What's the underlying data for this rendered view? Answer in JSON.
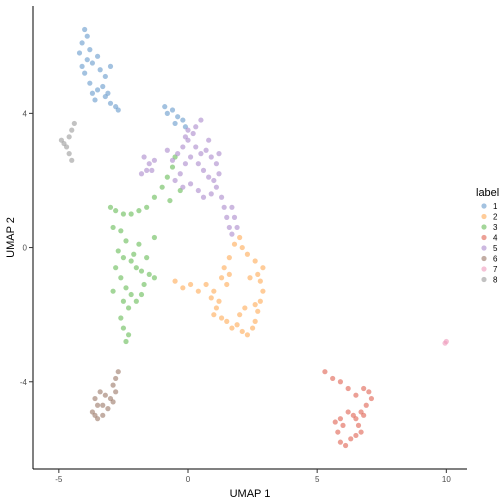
{
  "chart_data": {
    "type": "scatter",
    "xlabel": "UMAP 1",
    "ylabel": "UMAP 2",
    "xlim": [
      -6,
      10.8
    ],
    "ylim": [
      -6.6,
      7.2
    ],
    "x_ticks": [
      -5,
      0,
      5,
      10
    ],
    "y_ticks": [
      -4,
      0,
      4
    ],
    "x_tick_labels": [
      "-5",
      "0",
      "5",
      "10"
    ],
    "y_tick_labels": [
      "-4",
      "0",
      "4"
    ],
    "grid": false,
    "legend": {
      "title": "label",
      "placement": "right"
    },
    "point_opacity": 0.6,
    "series": [
      {
        "name": "1",
        "color": "#6699CC",
        "points": [
          [
            -4.0,
            6.5
          ],
          [
            -3.9,
            6.3
          ],
          [
            -4.1,
            6.1
          ],
          [
            -3.8,
            5.9
          ],
          [
            -4.2,
            5.8
          ],
          [
            -3.9,
            5.6
          ],
          [
            -4.1,
            5.4
          ],
          [
            -3.7,
            5.5
          ],
          [
            -3.5,
            5.7
          ],
          [
            -4.0,
            5.2
          ],
          [
            -3.4,
            5.3
          ],
          [
            -3.2,
            5.1
          ],
          [
            -3.0,
            5.4
          ],
          [
            -3.8,
            4.9
          ],
          [
            -3.5,
            4.7
          ],
          [
            -3.3,
            4.8
          ],
          [
            -3.7,
            4.6
          ],
          [
            -3.1,
            4.6
          ],
          [
            -3.6,
            4.4
          ],
          [
            -3.0,
            4.3
          ],
          [
            -2.8,
            4.2
          ],
          [
            -2.7,
            4.1
          ],
          [
            -3.2,
            4.5
          ],
          [
            -0.9,
            4.2
          ],
          [
            -0.8,
            4.0
          ],
          [
            -0.6,
            4.1
          ],
          [
            -0.4,
            3.9
          ],
          [
            -0.2,
            3.8
          ],
          [
            -0.5,
            3.7
          ],
          [
            -0.1,
            3.6
          ]
        ]
      },
      {
        "name": "2",
        "color": "#FFAA55",
        "points": [
          [
            -0.5,
            -1.0
          ],
          [
            -0.2,
            -1.2
          ],
          [
            0.1,
            -1.1
          ],
          [
            0.4,
            -1.3
          ],
          [
            0.7,
            -1.1
          ],
          [
            1.0,
            -1.3
          ],
          [
            0.9,
            -1.5
          ],
          [
            1.1,
            -1.8
          ],
          [
            1.0,
            -2.0
          ],
          [
            1.2,
            -1.6
          ],
          [
            1.3,
            -2.1
          ],
          [
            1.5,
            -2.2
          ],
          [
            1.7,
            -2.4
          ],
          [
            1.9,
            -2.3
          ],
          [
            2.1,
            -2.5
          ],
          [
            2.3,
            -2.6
          ],
          [
            2.5,
            -2.4
          ],
          [
            2.6,
            -2.2
          ],
          [
            2.7,
            -1.9
          ],
          [
            2.8,
            -1.6
          ],
          [
            2.9,
            -1.3
          ],
          [
            2.8,
            -1.0
          ],
          [
            2.7,
            -0.8
          ],
          [
            2.9,
            -0.6
          ],
          [
            2.6,
            -0.4
          ],
          [
            2.3,
            -0.2
          ],
          [
            2.1,
            0.0
          ],
          [
            1.8,
            0.1
          ],
          [
            2.0,
            0.3
          ],
          [
            1.6,
            -0.3
          ],
          [
            1.4,
            -0.6
          ],
          [
            1.3,
            -0.9
          ],
          [
            1.6,
            -0.8
          ],
          [
            1.5,
            -1.1
          ],
          [
            2.4,
            -0.9
          ],
          [
            2.2,
            -1.8
          ],
          [
            2.0,
            -2.0
          ],
          [
            2.6,
            -1.7
          ]
        ]
      },
      {
        "name": "3",
        "color": "#66BB55",
        "points": [
          [
            -3.0,
            1.2
          ],
          [
            -2.8,
            1.1
          ],
          [
            -2.5,
            1.0
          ],
          [
            -2.2,
            1.0
          ],
          [
            -1.9,
            1.1
          ],
          [
            -1.6,
            1.2
          ],
          [
            -1.3,
            1.5
          ],
          [
            -1.0,
            1.8
          ],
          [
            -0.8,
            2.1
          ],
          [
            -0.6,
            2.4
          ],
          [
            -0.5,
            2.7
          ],
          [
            -0.3,
            1.7
          ],
          [
            -0.7,
            1.4
          ],
          [
            -2.9,
            0.6
          ],
          [
            -2.6,
            0.5
          ],
          [
            -2.4,
            0.2
          ],
          [
            -2.7,
            -0.1
          ],
          [
            -2.5,
            -0.3
          ],
          [
            -2.2,
            -0.4
          ],
          [
            -2.0,
            -0.6
          ],
          [
            -1.8,
            -0.7
          ],
          [
            -1.5,
            -0.8
          ],
          [
            -1.3,
            -0.9
          ],
          [
            -2.8,
            -0.6
          ],
          [
            -2.6,
            -0.9
          ],
          [
            -2.4,
            -1.2
          ],
          [
            -2.2,
            -1.4
          ],
          [
            -2.5,
            -1.6
          ],
          [
            -2.3,
            -1.8
          ],
          [
            -2.0,
            -1.6
          ],
          [
            -1.8,
            -1.4
          ],
          [
            -2.6,
            -2.1
          ],
          [
            -2.5,
            -2.4
          ],
          [
            -2.3,
            -2.6
          ],
          [
            -2.4,
            -2.8
          ],
          [
            -2.1,
            -0.2
          ],
          [
            -1.9,
            0.1
          ],
          [
            -1.6,
            -0.3
          ],
          [
            -1.3,
            0.3
          ],
          [
            -1.7,
            -1.1
          ],
          [
            -2.9,
            -1.3
          ]
        ]
      },
      {
        "name": "4",
        "color": "#E06050",
        "points": [
          [
            5.3,
            -3.7
          ],
          [
            5.6,
            -3.9
          ],
          [
            5.9,
            -4.0
          ],
          [
            6.2,
            -4.2
          ],
          [
            6.5,
            -4.4
          ],
          [
            6.8,
            -4.2
          ],
          [
            7.0,
            -4.3
          ],
          [
            7.1,
            -4.5
          ],
          [
            6.9,
            -4.7
          ],
          [
            6.7,
            -4.9
          ],
          [
            6.5,
            -5.1
          ],
          [
            6.2,
            -4.9
          ],
          [
            5.9,
            -5.1
          ],
          [
            6.0,
            -5.3
          ],
          [
            5.8,
            -5.5
          ],
          [
            5.9,
            -5.8
          ],
          [
            6.1,
            -5.9
          ],
          [
            6.3,
            -5.7
          ],
          [
            6.5,
            -5.6
          ],
          [
            6.7,
            -5.5
          ],
          [
            6.6,
            -5.3
          ],
          [
            6.4,
            -5.0
          ],
          [
            6.8,
            -5.0
          ],
          [
            5.7,
            -5.2
          ]
        ]
      },
      {
        "name": "5",
        "color": "#AA88CC",
        "points": [
          [
            -1.7,
            2.7
          ],
          [
            -1.5,
            2.5
          ],
          [
            -1.3,
            2.6
          ],
          [
            -1.6,
            2.3
          ],
          [
            -1.8,
            2.2
          ],
          [
            -1.4,
            2.3
          ],
          [
            -0.8,
            2.9
          ],
          [
            -0.6,
            2.6
          ],
          [
            -0.4,
            2.8
          ],
          [
            -0.2,
            3.0
          ],
          [
            0.0,
            3.2
          ],
          [
            0.2,
            3.4
          ],
          [
            0.3,
            3.0
          ],
          [
            0.5,
            2.8
          ],
          [
            0.7,
            2.9
          ],
          [
            0.9,
            2.7
          ],
          [
            1.1,
            2.5
          ],
          [
            1.2,
            2.2
          ],
          [
            1.0,
            2.0
          ],
          [
            0.8,
            2.1
          ],
          [
            0.6,
            2.3
          ],
          [
            0.4,
            2.5
          ],
          [
            0.1,
            2.7
          ],
          [
            -0.1,
            2.5
          ],
          [
            -0.3,
            2.2
          ],
          [
            -0.5,
            2.0
          ],
          [
            -0.2,
            1.8
          ],
          [
            0.1,
            1.9
          ],
          [
            0.4,
            1.7
          ],
          [
            0.6,
            1.5
          ],
          [
            0.9,
            1.6
          ],
          [
            1.1,
            1.8
          ],
          [
            1.3,
            1.5
          ],
          [
            1.4,
            1.2
          ],
          [
            1.5,
            0.9
          ],
          [
            1.6,
            0.6
          ],
          [
            1.7,
            0.4
          ],
          [
            1.9,
            0.6
          ],
          [
            1.8,
            0.9
          ],
          [
            1.7,
            1.2
          ],
          [
            0.0,
            3.5
          ],
          [
            0.3,
            3.6
          ],
          [
            0.5,
            3.8
          ],
          [
            -0.1,
            3.3
          ],
          [
            1.2,
            2.8
          ],
          [
            0.8,
            3.2
          ]
        ]
      },
      {
        "name": "6",
        "color": "#997766",
        "points": [
          [
            -2.7,
            -3.7
          ],
          [
            -2.8,
            -3.9
          ],
          [
            -2.9,
            -4.1
          ],
          [
            -2.8,
            -4.3
          ],
          [
            -3.0,
            -4.5
          ],
          [
            -3.2,
            -4.4
          ],
          [
            -3.4,
            -4.3
          ],
          [
            -3.6,
            -4.5
          ],
          [
            -3.5,
            -4.7
          ],
          [
            -3.7,
            -4.9
          ],
          [
            -3.5,
            -5.1
          ],
          [
            -3.3,
            -5.0
          ],
          [
            -3.1,
            -4.8
          ],
          [
            -2.9,
            -4.6
          ],
          [
            -3.3,
            -4.7
          ],
          [
            -3.6,
            -5.0
          ]
        ]
      },
      {
        "name": "7",
        "color": "#EE99BB",
        "points": [
          [
            10.0,
            -2.8
          ],
          [
            9.95,
            -2.85
          ]
        ]
      },
      {
        "name": "8",
        "color": "#999999",
        "points": [
          [
            -4.9,
            3.2
          ],
          [
            -4.8,
            3.1
          ],
          [
            -4.7,
            3.0
          ],
          [
            -4.6,
            2.8
          ],
          [
            -4.5,
            2.6
          ],
          [
            -4.6,
            3.3
          ],
          [
            -4.5,
            3.5
          ],
          [
            -4.4,
            3.7
          ]
        ]
      }
    ]
  }
}
